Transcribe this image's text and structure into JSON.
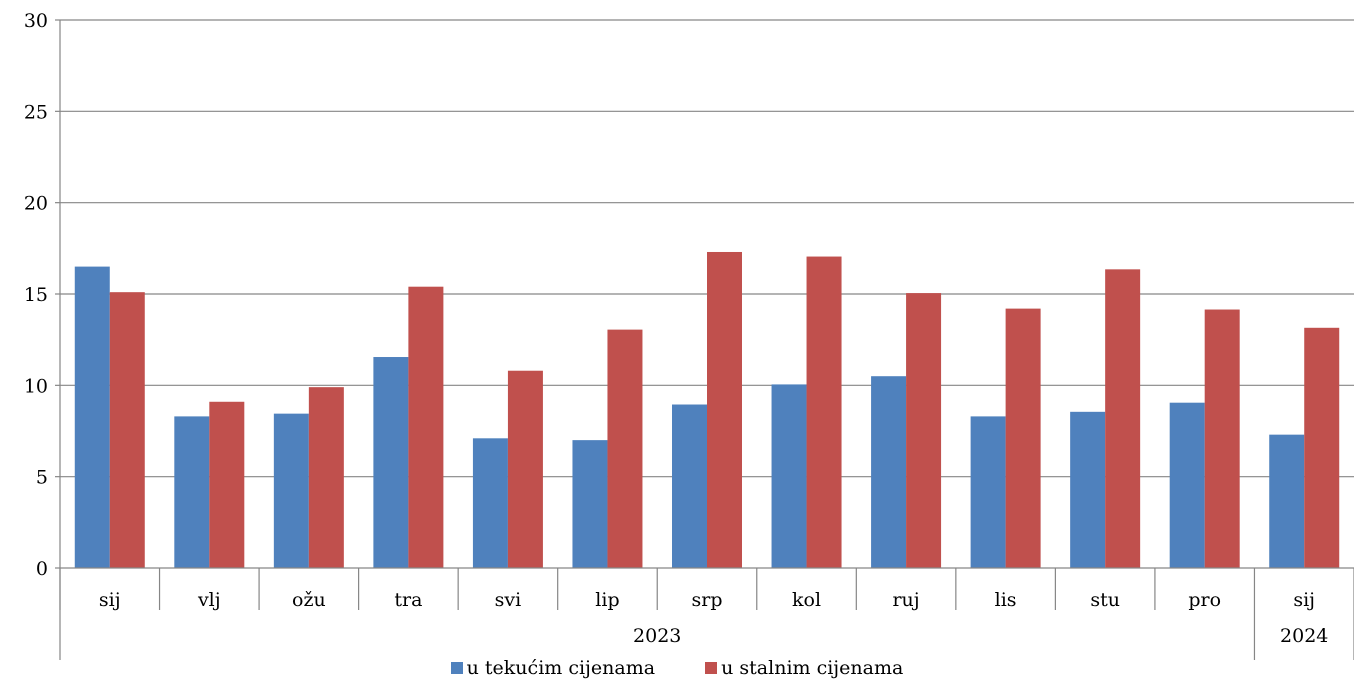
{
  "chart_data": {
    "type": "bar",
    "categories": [
      "sij",
      "vlj",
      "ožu",
      "tra",
      "svi",
      "lip",
      "srp",
      "kol",
      "ruj",
      "lis",
      "stu",
      "pro",
      "sij"
    ],
    "groups": [
      {
        "label": "2023",
        "span": 12
      },
      {
        "label": "2024",
        "span": 1
      }
    ],
    "series": [
      {
        "name": "u tekućim cijenama",
        "color": "#4F81BD",
        "values": [
          16.5,
          8.3,
          8.45,
          11.55,
          7.1,
          7.0,
          8.95,
          10.05,
          10.5,
          8.3,
          8.55,
          9.05,
          7.3
        ]
      },
      {
        "name": "u stalnim cijenama",
        "color": "#C0504D",
        "values": [
          15.1,
          9.1,
          9.9,
          15.4,
          10.8,
          13.05,
          17.3,
          17.05,
          15.05,
          14.2,
          16.35,
          14.15,
          13.15
        ]
      }
    ],
    "yticks": [
      0,
      5,
      10,
      15,
      20,
      25,
      30
    ],
    "ylim": [
      0,
      30
    ],
    "grid": true,
    "legend_position": "bottom"
  }
}
